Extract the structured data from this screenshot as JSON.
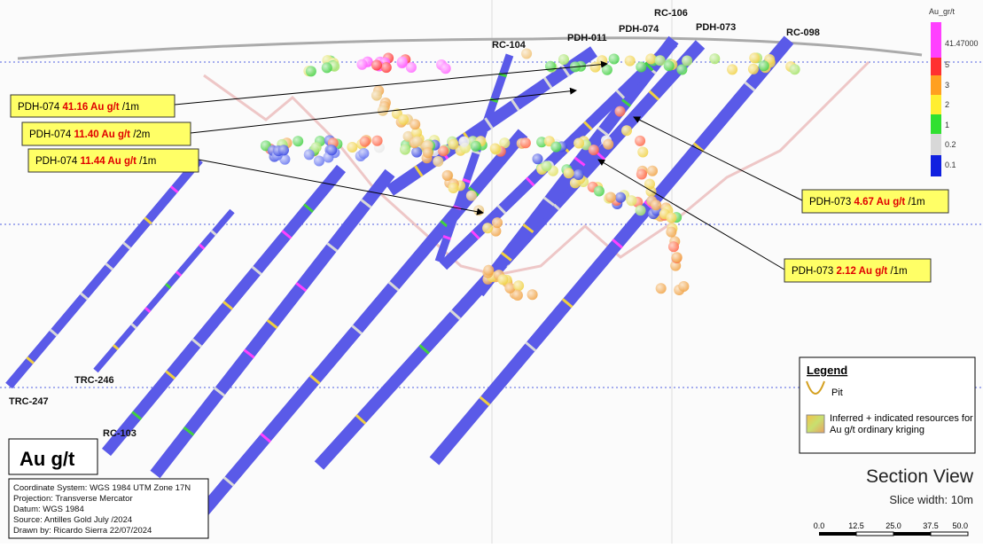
{
  "holes": [
    "RC-104",
    "PDH-011",
    "PDH-074",
    "RC-106",
    "PDH-073",
    "RC-098",
    "TRC-246",
    "TRC-247",
    "RC-103"
  ],
  "callouts": [
    {
      "hole": "PDH-074",
      "grade": "41.16 Au g/t",
      "interval": "/1m"
    },
    {
      "hole": "PDH-074",
      "grade": "11.40 Au g/t",
      "interval": "/2m"
    },
    {
      "hole": "PDH-074",
      "grade": "11.44 Au g/t",
      "interval": "/1m"
    },
    {
      "hole": "PDH-073",
      "grade": "4.67 Au g/t",
      "interval": "/1m"
    },
    {
      "hole": "PDH-073",
      "grade": "2.12 Au g/t",
      "interval": "/1m"
    }
  ],
  "color_scale": {
    "title": "Au_gr/t",
    "labels": [
      "41.47000",
      "5",
      "3",
      "2",
      "1",
      "0.2",
      "0.1"
    ]
  },
  "legend": {
    "title": "Legend",
    "items": [
      "Pit",
      "Inferred + indicated resources for Au g/t ordinary kriging"
    ]
  },
  "unit_label": "Au g/t",
  "info": [
    "Coordinate System: WGS 1984 UTM Zone 17N",
    "Projection: Transverse Mercator",
    "Datum: WGS 1984",
    "Source: Antilles Gold  July /2024",
    "Drawn by: Ricardo Sierra 22/07/2024"
  ],
  "view": {
    "title": "Section View",
    "slice": "Slice width: 10m"
  },
  "scale_bar": [
    "0.0",
    "12.5",
    "25.0",
    "37.5",
    "50.0"
  ]
}
